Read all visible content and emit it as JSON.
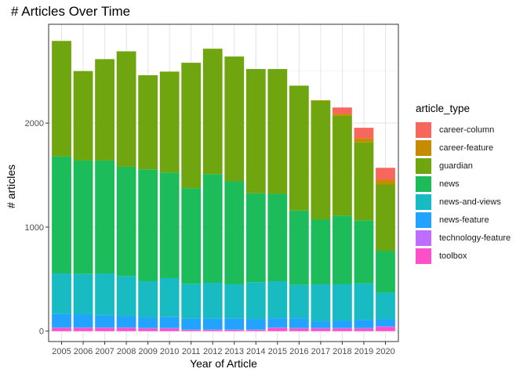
{
  "chart_data": {
    "type": "bar",
    "stacked": true,
    "title": "# Articles Over Time",
    "xlabel": "Year of Article",
    "ylabel": "# articles",
    "ylim": [
      -100,
      2950
    ],
    "y_ticks": [
      0,
      1000,
      2000
    ],
    "y_tick_labels": [
      "0",
      "1000",
      "2000"
    ],
    "grid": true,
    "legend_position": "right",
    "legend_title": "article_type",
    "categories": [
      "2005",
      "2006",
      "2007",
      "2008",
      "2009",
      "2010",
      "2011",
      "2012",
      "2013",
      "2014",
      "2015",
      "2016",
      "2017",
      "2018",
      "2019",
      "2020"
    ],
    "series": [
      {
        "name": "toolbox",
        "color": "#FF4FCB",
        "values": [
          30,
          30,
          30,
          30,
          25,
          25,
          10,
          10,
          10,
          10,
          30,
          25,
          25,
          25,
          25,
          40
        ]
      },
      {
        "name": "technology-feature",
        "color": "#BD6DFF",
        "values": [
          5,
          5,
          5,
          5,
          5,
          5,
          5,
          5,
          5,
          5,
          5,
          5,
          5,
          5,
          5,
          5
        ]
      },
      {
        "name": "news-feature",
        "color": "#22A3FF",
        "values": [
          130,
          125,
          115,
          110,
          100,
          105,
          105,
          105,
          105,
          100,
          90,
          95,
          65,
          70,
          80,
          70
        ]
      },
      {
        "name": "news-and-views",
        "color": "#17BBC1",
        "values": [
          390,
          390,
          405,
          385,
          350,
          375,
          335,
          345,
          330,
          355,
          355,
          320,
          355,
          350,
          350,
          255
        ]
      },
      {
        "name": "news",
        "color": "#1DBC5B",
        "values": [
          1125,
          1090,
          1085,
          1050,
          1075,
          1015,
          920,
          1045,
          990,
          855,
          840,
          715,
          625,
          660,
          605,
          400
        ]
      },
      {
        "name": "guardian",
        "color": "#6FA50E",
        "values": [
          1110,
          860,
          975,
          1110,
          905,
          970,
          1205,
          1205,
          1200,
          1195,
          1200,
          1200,
          1140,
          960,
          750,
          640
        ]
      },
      {
        "name": "career-feature",
        "color": "#C68B00",
        "values": [
          0,
          0,
          0,
          0,
          0,
          0,
          0,
          0,
          0,
          0,
          0,
          0,
          5,
          20,
          40,
          45
        ]
      },
      {
        "name": "career-column",
        "color": "#F8675D",
        "values": [
          0,
          0,
          0,
          0,
          0,
          0,
          0,
          0,
          0,
          0,
          0,
          0,
          0,
          60,
          100,
          115
        ]
      }
    ]
  }
}
